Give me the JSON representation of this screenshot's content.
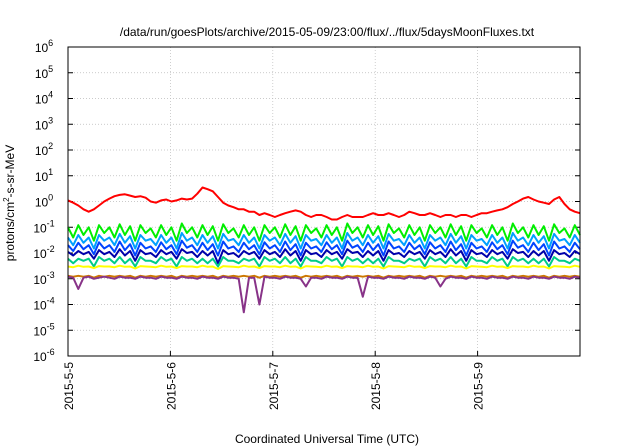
{
  "chart_data": {
    "type": "line",
    "title": "/data/run/goesPlots/archive/2015-05-09/23:00/flux/../flux/5daysMoonFluxes.txt",
    "xlabel": "Coordinated Universal Time (UTC)",
    "ylabel": "protons/cm²-s-sr-MeV",
    "ylabel_base": "protons/cm",
    "ylabel_sup": "2",
    "ylabel_rest": "-s-sr-MeV",
    "x_ticks": [
      "2015-5-5",
      "2015-5-6",
      "2015-5-7",
      "2015-5-8",
      "2015-5-9"
    ],
    "y_ticks": [
      {
        "base": "10",
        "exp": "-6"
      },
      {
        "base": "10",
        "exp": "-5"
      },
      {
        "base": "10",
        "exp": "-4"
      },
      {
        "base": "10",
        "exp": "-3"
      },
      {
        "base": "10",
        "exp": "-2"
      },
      {
        "base": "10",
        "exp": "-1"
      },
      {
        "base": "10",
        "exp": "0"
      },
      {
        "base": "10",
        "exp": "1"
      },
      {
        "base": "10",
        "exp": "2"
      },
      {
        "base": "10",
        "exp": "3"
      },
      {
        "base": "10",
        "exp": "4"
      },
      {
        "base": "10",
        "exp": "5"
      },
      {
        "base": "10",
        "exp": "6"
      }
    ],
    "xlim": [
      "2015-05-05",
      "2015-05-10"
    ],
    "ylim": [
      1e-06,
      1000000.0
    ],
    "yscale": "log",
    "grid": true,
    "series": [
      {
        "color": "#ff0000",
        "values": [
          1.1,
          0.9,
          0.7,
          0.5,
          0.4,
          0.5,
          0.7,
          1.0,
          1.3,
          1.6,
          1.8,
          1.9,
          1.7,
          1.5,
          1.6,
          1.4,
          1.0,
          0.9,
          1.1,
          1.2,
          1.0,
          1.1,
          1.3,
          1.2,
          1.3,
          2.0,
          3.5,
          3.0,
          2.5,
          1.5,
          0.9,
          0.7,
          0.6,
          0.5,
          0.5,
          0.4,
          0.4,
          0.3,
          0.35,
          0.3,
          0.25,
          0.3,
          0.35,
          0.4,
          0.45,
          0.4,
          0.3,
          0.25,
          0.3,
          0.3,
          0.25,
          0.2,
          0.2,
          0.25,
          0.3,
          0.25,
          0.25,
          0.25,
          0.3,
          0.35,
          0.3,
          0.3,
          0.35,
          0.3,
          0.25,
          0.3,
          0.4,
          0.35,
          0.3,
          0.3,
          0.35,
          0.3,
          0.25,
          0.3,
          0.3,
          0.25,
          0.3,
          0.3,
          0.25,
          0.3,
          0.35,
          0.35,
          0.4,
          0.45,
          0.5,
          0.6,
          0.8,
          1.0,
          1.3,
          1.5,
          1.2,
          1.0,
          0.9,
          0.8,
          1.2,
          1.5,
          0.8,
          0.5,
          0.4,
          0.35
        ]
      },
      {
        "color": "#00ee00",
        "values": [
          0.1,
          0.04,
          0.12,
          0.05,
          0.1,
          0.03,
          0.12,
          0.06,
          0.1,
          0.04,
          0.13,
          0.05,
          0.11,
          0.03,
          0.12,
          0.06,
          0.09,
          0.04,
          0.12,
          0.05,
          0.1,
          0.03,
          0.14,
          0.06,
          0.1,
          0.04,
          0.12,
          0.05,
          0.11,
          0.03,
          0.13,
          0.06,
          0.09,
          0.04,
          0.12,
          0.05,
          0.1,
          0.03,
          0.12,
          0.06,
          0.1,
          0.04,
          0.13,
          0.05,
          0.11,
          0.03,
          0.12,
          0.06,
          0.09,
          0.04,
          0.12,
          0.05,
          0.1,
          0.03,
          0.14,
          0.06,
          0.1,
          0.04,
          0.12,
          0.05,
          0.11,
          0.03,
          0.13,
          0.06,
          0.09,
          0.04,
          0.12,
          0.05,
          0.1,
          0.03,
          0.12,
          0.06,
          0.1,
          0.04,
          0.13,
          0.05,
          0.11,
          0.03,
          0.12,
          0.06,
          0.09,
          0.04,
          0.12,
          0.05,
          0.1,
          0.03,
          0.14,
          0.06,
          0.1,
          0.04,
          0.12,
          0.05,
          0.11,
          0.03,
          0.13,
          0.06,
          0.09,
          0.04,
          0.12,
          0.05
        ]
      },
      {
        "color": "#00a0ff",
        "values": [
          0.04,
          0.02,
          0.05,
          0.025,
          0.04,
          0.015,
          0.05,
          0.03,
          0.04,
          0.02,
          0.055,
          0.025,
          0.045,
          0.015,
          0.05,
          0.03,
          0.035,
          0.02,
          0.05,
          0.025,
          0.04,
          0.015,
          0.06,
          0.03,
          0.04,
          0.02,
          0.05,
          0.025,
          0.045,
          0.015,
          0.055,
          0.03,
          0.035,
          0.02,
          0.05,
          0.025,
          0.04,
          0.015,
          0.05,
          0.03,
          0.04,
          0.02,
          0.055,
          0.025,
          0.045,
          0.015,
          0.05,
          0.03,
          0.035,
          0.02,
          0.05,
          0.025,
          0.04,
          0.015,
          0.06,
          0.03,
          0.04,
          0.02,
          0.05,
          0.025,
          0.045,
          0.015,
          0.055,
          0.03,
          0.035,
          0.02,
          0.05,
          0.025,
          0.04,
          0.015,
          0.05,
          0.03,
          0.04,
          0.02,
          0.055,
          0.025,
          0.045,
          0.015,
          0.05,
          0.03,
          0.035,
          0.02,
          0.05,
          0.025,
          0.04,
          0.015,
          0.06,
          0.03,
          0.04,
          0.02,
          0.05,
          0.025,
          0.045,
          0.015,
          0.055,
          0.03,
          0.035,
          0.02,
          0.05,
          0.025
        ]
      },
      {
        "color": "#0044ff",
        "values": [
          0.02,
          0.012,
          0.025,
          0.014,
          0.02,
          0.009,
          0.026,
          0.015,
          0.02,
          0.011,
          0.028,
          0.013,
          0.022,
          0.008,
          0.025,
          0.015,
          0.018,
          0.011,
          0.026,
          0.014,
          0.02,
          0.009,
          0.03,
          0.016,
          0.02,
          0.011,
          0.025,
          0.013,
          0.022,
          0.008,
          0.028,
          0.015,
          0.018,
          0.011,
          0.025,
          0.014,
          0.02,
          0.009,
          0.026,
          0.015,
          0.02,
          0.011,
          0.028,
          0.013,
          0.022,
          0.008,
          0.025,
          0.015,
          0.018,
          0.011,
          0.026,
          0.014,
          0.02,
          0.009,
          0.03,
          0.016,
          0.02,
          0.011,
          0.025,
          0.013,
          0.022,
          0.008,
          0.028,
          0.015,
          0.018,
          0.011,
          0.025,
          0.014,
          0.02,
          0.009,
          0.026,
          0.015,
          0.02,
          0.011,
          0.028,
          0.013,
          0.022,
          0.008,
          0.025,
          0.015,
          0.018,
          0.011,
          0.026,
          0.014,
          0.02,
          0.009,
          0.03,
          0.016,
          0.02,
          0.011,
          0.025,
          0.013,
          0.022,
          0.008,
          0.028,
          0.015,
          0.018,
          0.011,
          0.025,
          0.014
        ]
      },
      {
        "color": "#0000aa",
        "values": [
          0.011,
          0.008,
          0.012,
          0.009,
          0.011,
          0.006,
          0.013,
          0.009,
          0.011,
          0.007,
          0.014,
          0.008,
          0.012,
          0.005,
          0.013,
          0.009,
          0.01,
          0.007,
          0.013,
          0.009,
          0.011,
          0.006,
          0.014,
          0.01,
          0.011,
          0.007,
          0.012,
          0.008,
          0.012,
          0.004,
          0.013,
          0.009,
          0.01,
          0.007,
          0.012,
          0.009,
          0.011,
          0.006,
          0.013,
          0.009,
          0.011,
          0.007,
          0.014,
          0.008,
          0.012,
          0.005,
          0.013,
          0.009,
          0.01,
          0.007,
          0.013,
          0.009,
          0.011,
          0.006,
          0.014,
          0.01,
          0.011,
          0.007,
          0.012,
          0.008,
          0.012,
          0.005,
          0.013,
          0.009,
          0.01,
          0.007,
          0.012,
          0.009,
          0.011,
          0.006,
          0.013,
          0.009,
          0.011,
          0.007,
          0.014,
          0.008,
          0.012,
          0.005,
          0.013,
          0.009,
          0.01,
          0.007,
          0.013,
          0.009,
          0.011,
          0.006,
          0.014,
          0.01,
          0.011,
          0.007,
          0.012,
          0.008,
          0.012,
          0.005,
          0.013,
          0.009,
          0.01,
          0.007,
          0.012,
          0.009
        ]
      },
      {
        "color": "#00cc88",
        "values": [
          0.006,
          0.004,
          0.006,
          0.005,
          0.006,
          0.003,
          0.007,
          0.005,
          0.006,
          0.004,
          0.007,
          0.004,
          0.006,
          0.003,
          0.007,
          0.005,
          0.005,
          0.004,
          0.007,
          0.005,
          0.006,
          0.003,
          0.007,
          0.005,
          0.006,
          0.004,
          0.006,
          0.004,
          0.006,
          0.003,
          0.007,
          0.005,
          0.005,
          0.004,
          0.006,
          0.005,
          0.006,
          0.003,
          0.007,
          0.005,
          0.006,
          0.004,
          0.007,
          0.004,
          0.006,
          0.003,
          0.007,
          0.005,
          0.005,
          0.004,
          0.007,
          0.005,
          0.006,
          0.003,
          0.007,
          0.005,
          0.006,
          0.004,
          0.006,
          0.004,
          0.006,
          0.003,
          0.007,
          0.005,
          0.005,
          0.004,
          0.006,
          0.005,
          0.006,
          0.003,
          0.007,
          0.005,
          0.006,
          0.004,
          0.007,
          0.004,
          0.006,
          0.003,
          0.007,
          0.005,
          0.005,
          0.004,
          0.007,
          0.005,
          0.006,
          0.003,
          0.007,
          0.005,
          0.006,
          0.004,
          0.006,
          0.004,
          0.006,
          0.003,
          0.007,
          0.005,
          0.005,
          0.004,
          0.006,
          0.005
        ]
      },
      {
        "color": "#ffff00",
        "values": [
          0.003,
          0.0028,
          0.0032,
          0.0029,
          0.003,
          0.0026,
          0.0031,
          0.003,
          0.003,
          0.0028,
          0.0032,
          0.0029,
          0.003,
          0.0025,
          0.0031,
          0.003,
          0.0029,
          0.0028,
          0.0032,
          0.0029,
          0.003,
          0.0026,
          0.0031,
          0.003,
          0.003,
          0.0028,
          0.0032,
          0.0029,
          0.003,
          0.0024,
          0.0031,
          0.003,
          0.0029,
          0.0028,
          0.0032,
          0.0029,
          0.003,
          0.0026,
          0.0031,
          0.003,
          0.003,
          0.0028,
          0.0032,
          0.0029,
          0.003,
          0.0025,
          0.0031,
          0.003,
          0.0029,
          0.0028,
          0.0032,
          0.0029,
          0.003,
          0.0026,
          0.0031,
          0.003,
          0.003,
          0.0028,
          0.0032,
          0.0029,
          0.003,
          0.0025,
          0.0031,
          0.003,
          0.0029,
          0.0028,
          0.0032,
          0.0029,
          0.003,
          0.0026,
          0.0031,
          0.003,
          0.003,
          0.0028,
          0.0032,
          0.0029,
          0.003,
          0.0025,
          0.0031,
          0.003,
          0.0029,
          0.0028,
          0.0032,
          0.0029,
          0.003,
          0.0026,
          0.0031,
          0.003,
          0.003,
          0.0028,
          0.0032,
          0.0029,
          0.003,
          0.0025,
          0.0031,
          0.003,
          0.0029,
          0.0028,
          0.0032,
          0.0029
        ]
      },
      {
        "color": "#cc7700",
        "values": [
          0.0013,
          0.0012,
          0.0013,
          0.0012,
          0.0013,
          0.0011,
          0.0013,
          0.0012,
          0.0013,
          0.0012,
          0.0013,
          0.0012,
          0.0013,
          0.0011,
          0.0013,
          0.0012,
          0.0013,
          0.0012,
          0.0013,
          0.0012,
          0.0013,
          0.0011,
          0.0013,
          0.0012,
          0.0013,
          0.0012,
          0.0013,
          0.0012,
          0.0013,
          0.0011,
          0.0013,
          0.0012,
          0.0013,
          0.0012,
          0.0013,
          0.0012,
          0.0013,
          0.0011,
          0.0013,
          0.0012,
          0.0013,
          0.0012,
          0.0013,
          0.0012,
          0.0013,
          0.0011,
          0.0013,
          0.0012,
          0.0013,
          0.0012,
          0.0013,
          0.0012,
          0.0013,
          0.0011,
          0.0013,
          0.0012,
          0.0013,
          0.0012,
          0.0013,
          0.0012,
          0.0013,
          0.0011,
          0.0013,
          0.0012,
          0.0013,
          0.0012,
          0.0013,
          0.0012,
          0.0013,
          0.0011,
          0.0013,
          0.0012,
          0.0013,
          0.0012,
          0.0013,
          0.0012,
          0.0013,
          0.0011,
          0.0013,
          0.0012,
          0.0013,
          0.0012,
          0.0013,
          0.0012,
          0.0013,
          0.0011,
          0.0013,
          0.0012,
          0.0013,
          0.0012,
          0.0013,
          0.0012,
          0.0013,
          0.0011,
          0.0013,
          0.0012,
          0.0013,
          0.0012,
          0.0013,
          0.0012
        ]
      },
      {
        "color": "#883388",
        "values": [
          0.0012,
          0.0011,
          0.0004,
          0.0011,
          0.0012,
          0.001,
          0.0011,
          0.0012,
          0.0011,
          0.001,
          0.0012,
          0.0011,
          0.0011,
          0.001,
          0.0012,
          0.0011,
          0.0011,
          0.001,
          0.0012,
          0.0011,
          0.0011,
          0.001,
          0.0012,
          0.0011,
          0.0011,
          0.001,
          0.0012,
          0.0011,
          0.0011,
          0.001,
          0.0012,
          0.0011,
          0.0011,
          0.001,
          5e-05,
          0.0011,
          0.0011,
          0.0001,
          0.0012,
          0.0011,
          0.0011,
          0.001,
          0.0012,
          0.0011,
          0.0011,
          0.001,
          0.0005,
          0.0011,
          0.0011,
          0.001,
          0.0012,
          0.0011,
          0.0011,
          0.001,
          0.0012,
          0.0011,
          0.0011,
          0.0002,
          0.0012,
          0.0011,
          0.0011,
          0.001,
          0.0012,
          0.0011,
          0.0011,
          0.001,
          0.0012,
          0.0011,
          0.0011,
          0.001,
          0.0012,
          0.0011,
          0.0005,
          0.001,
          0.0012,
          0.0011,
          0.0011,
          0.001,
          0.0012,
          0.0011,
          0.0011,
          0.001,
          0.0012,
          0.0011,
          0.0011,
          0.001,
          0.0012,
          0.0011,
          0.0011,
          0.001,
          0.0012,
          0.0011,
          0.0011,
          0.001,
          0.0012,
          0.0011,
          0.0011,
          0.001,
          0.0012,
          0.0011
        ]
      }
    ]
  }
}
